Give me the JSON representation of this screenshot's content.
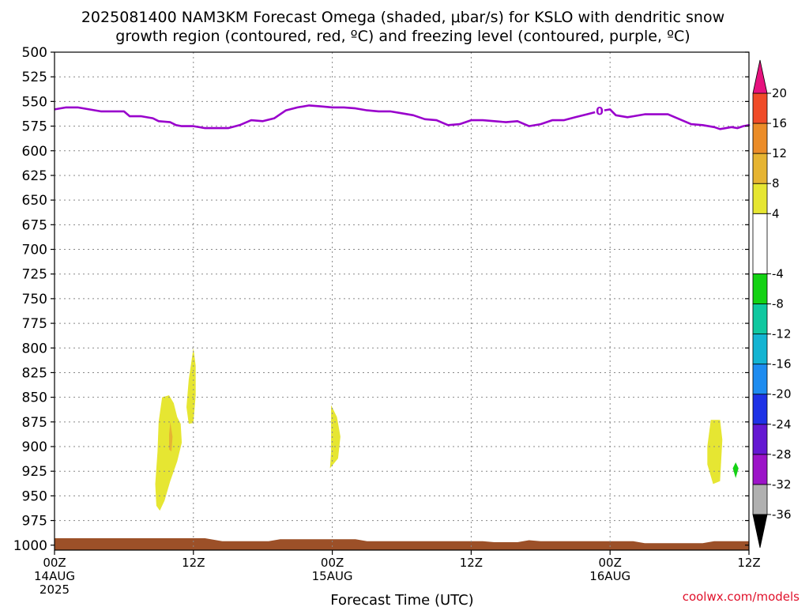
{
  "title": {
    "line1": "2025081400 NAM3KM Forecast Omega (shaded, μbar/s) for KSLO with dendritic snow",
    "line2": "growth region (contoured, red, ºC) and freezing level (contoured, purple, ºC)"
  },
  "xlabel": "Forecast Time (UTC)",
  "credit": "coolwx.com/models",
  "chart_data": {
    "type": "heatmap",
    "title": "2025081400 NAM3KM Forecast Omega (shaded, μbar/s) for KSLO with dendritic snow growth region (contoured, red, ºC) and freezing level (contoured, purple, ºC)",
    "xlabel": "Forecast Time (UTC)",
    "ylabel": "",
    "y_axis": {
      "reversed": true,
      "ylim": [
        1005,
        500
      ],
      "ticks": [
        500,
        525,
        550,
        575,
        600,
        625,
        650,
        675,
        700,
        725,
        750,
        775,
        800,
        825,
        850,
        875,
        900,
        925,
        950,
        975,
        1000
      ]
    },
    "x_axis": {
      "unit": "forecast hour",
      "xlim": [
        0,
        60
      ],
      "ticks": [
        {
          "hour": 0,
          "line1": "00Z",
          "line2": "14AUG",
          "line3": "2025"
        },
        {
          "hour": 12,
          "line1": "12Z",
          "line2": "",
          "line3": ""
        },
        {
          "hour": 24,
          "line1": "00Z",
          "line2": "15AUG",
          "line3": ""
        },
        {
          "hour": 36,
          "line1": "12Z",
          "line2": "",
          "line3": ""
        },
        {
          "hour": 48,
          "line1": "00Z",
          "line2": "16AUG",
          "line3": ""
        },
        {
          "hour": 60,
          "line1": "12Z",
          "line2": "",
          "line3": ""
        }
      ]
    },
    "grid": true,
    "colorbar": {
      "placement": "right",
      "bins": [
        {
          "color": "#b0b0b0",
          "from": -36,
          "to": -32
        },
        {
          "color": "#9c14c8",
          "from": -32,
          "to": -28
        },
        {
          "color": "#6418d2",
          "from": -28,
          "to": -24
        },
        {
          "color": "#1e32e6",
          "from": -24,
          "to": -20
        },
        {
          "color": "#1e8cf0",
          "from": -20,
          "to": -16
        },
        {
          "color": "#14b4d2",
          "from": -16,
          "to": -12
        },
        {
          "color": "#10c8a0",
          "from": -12,
          "to": -8
        },
        {
          "color": "#14d214",
          "from": -8,
          "to": -4
        },
        {
          "color": "#ffffff",
          "from": -4,
          "to": 4
        },
        {
          "color": "#e6e632",
          "from": 4,
          "to": 8
        },
        {
          "color": "#e6b432",
          "from": 8,
          "to": 12
        },
        {
          "color": "#eb8c28",
          "from": 12,
          "to": 16
        },
        {
          "color": "#f04b28",
          "from": 16,
          "to": 20
        }
      ],
      "labels": [
        "20",
        "16",
        "12",
        "8",
        "4",
        "-4",
        "-8",
        "-12",
        "-16",
        "-20",
        "-24",
        "-28",
        "-32",
        "-36"
      ],
      "over_color": "#e6127e",
      "under_color": "#000000"
    },
    "freezing_level": {
      "label": "0",
      "label_hour": 47.1,
      "color": "#9900cc",
      "points": [
        [
          0,
          558
        ],
        [
          1,
          556
        ],
        [
          2,
          556
        ],
        [
          3,
          558
        ],
        [
          4,
          560
        ],
        [
          5,
          560
        ],
        [
          6,
          560
        ],
        [
          6.5,
          565
        ],
        [
          7.5,
          565
        ],
        [
          8.5,
          567
        ],
        [
          9,
          570
        ],
        [
          10,
          571
        ],
        [
          10.5,
          574
        ],
        [
          11,
          575
        ],
        [
          12,
          575
        ],
        [
          13,
          577
        ],
        [
          14,
          577
        ],
        [
          15,
          577
        ],
        [
          16,
          574
        ],
        [
          17,
          569
        ],
        [
          18,
          570
        ],
        [
          19,
          567
        ],
        [
          20,
          559
        ],
        [
          21,
          556
        ],
        [
          22,
          554
        ],
        [
          23,
          555
        ],
        [
          24,
          556
        ],
        [
          25,
          556
        ],
        [
          26,
          557
        ],
        [
          27,
          559
        ],
        [
          28,
          560
        ],
        [
          29,
          560
        ],
        [
          30,
          562
        ],
        [
          31,
          564
        ],
        [
          32,
          568
        ],
        [
          33,
          569
        ],
        [
          34,
          574
        ],
        [
          35,
          573
        ],
        [
          36,
          569
        ],
        [
          37,
          569
        ],
        [
          38,
          570
        ],
        [
          39,
          571
        ],
        [
          40,
          570
        ],
        [
          41,
          575
        ],
        [
          42,
          573
        ],
        [
          43,
          569
        ],
        [
          44,
          569
        ],
        [
          45,
          566
        ],
        [
          46,
          563
        ],
        [
          47,
          560
        ],
        [
          48,
          558
        ],
        [
          48.5,
          564
        ],
        [
          49.5,
          566
        ],
        [
          50,
          565
        ],
        [
          51,
          563
        ],
        [
          52,
          563
        ],
        [
          53,
          563
        ],
        [
          54,
          568
        ],
        [
          55,
          573
        ],
        [
          56,
          574
        ],
        [
          57,
          576
        ],
        [
          57.5,
          578
        ],
        [
          58.5,
          576
        ],
        [
          59,
          577
        ],
        [
          59.5,
          575
        ],
        [
          60,
          574
        ],
        [
          60.1,
          575
        ]
      ]
    },
    "omega_regions": [
      {
        "bin": "4 to 8",
        "points": [
          [
            9.3,
            850
          ],
          [
            9.9,
            848
          ],
          [
            10.3,
            856
          ],
          [
            10.6,
            870
          ],
          [
            10.9,
            877
          ],
          [
            11.0,
            896
          ],
          [
            10.6,
            915
          ],
          [
            10.0,
            935
          ],
          [
            9.5,
            955
          ],
          [
            9.1,
            965
          ],
          [
            8.8,
            960
          ],
          [
            8.7,
            938
          ],
          [
            8.9,
            905
          ],
          [
            9.0,
            875
          ]
        ]
      },
      {
        "bin": "4 to 8",
        "points": [
          [
            12.0,
            800
          ],
          [
            12.2,
            818
          ],
          [
            12.2,
            848
          ],
          [
            12.0,
            876
          ],
          [
            11.6,
            877
          ],
          [
            11.4,
            860
          ],
          [
            11.6,
            832
          ]
        ]
      },
      {
        "bin": "8 to 12",
        "points": [
          [
            10.0,
            875
          ],
          [
            10.2,
            890
          ],
          [
            10.1,
            905
          ],
          [
            9.9,
            903
          ],
          [
            9.9,
            888
          ]
        ]
      },
      {
        "bin": "4 to 8",
        "points": [
          [
            23.9,
            858
          ],
          [
            24.4,
            870
          ],
          [
            24.7,
            890
          ],
          [
            24.5,
            912
          ],
          [
            23.8,
            922
          ],
          [
            23.9,
            905
          ],
          [
            23.9,
            882
          ]
        ]
      },
      {
        "bin": "4 to 8",
        "points": [
          [
            56.7,
            873
          ],
          [
            57.5,
            873
          ],
          [
            57.7,
            893
          ],
          [
            57.5,
            935
          ],
          [
            56.9,
            938
          ],
          [
            56.4,
            918
          ],
          [
            56.4,
            900
          ]
        ]
      },
      {
        "bin": "-8 to -4",
        "points": [
          [
            58.85,
            916
          ],
          [
            59.1,
            922
          ],
          [
            58.85,
            932
          ],
          [
            58.6,
            922
          ]
        ]
      }
    ],
    "terrain": {
      "color": "#9c5028",
      "surface_points": [
        [
          0,
          993
        ],
        [
          4,
          993
        ],
        [
          8,
          993
        ],
        [
          13,
          993
        ],
        [
          14.5,
          996
        ],
        [
          18.5,
          996
        ],
        [
          19.5,
          994
        ],
        [
          26,
          994
        ],
        [
          27,
          996
        ],
        [
          37,
          996
        ],
        [
          38,
          997
        ],
        [
          40,
          997
        ],
        [
          41,
          995
        ],
        [
          42,
          996
        ],
        [
          50,
          996
        ],
        [
          51,
          998
        ],
        [
          56,
          998
        ],
        [
          57,
          996
        ],
        [
          60.1,
          996
        ]
      ]
    }
  }
}
